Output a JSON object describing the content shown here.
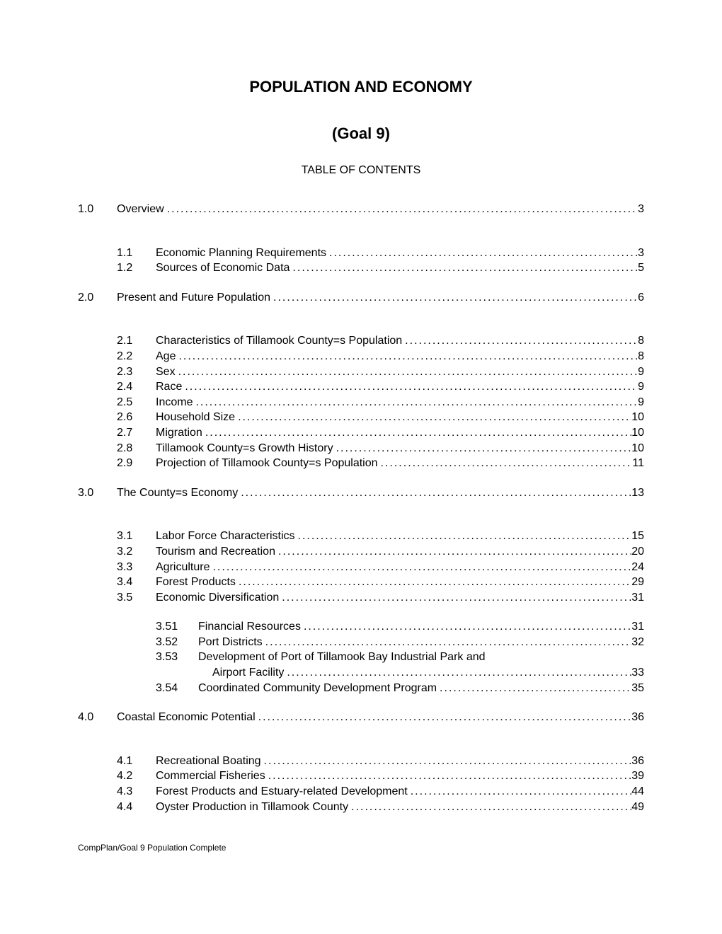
{
  "title_main": "POPULATION AND ECONOMY",
  "title_sub": "(Goal 9)",
  "toc_heading": "TABLE OF CONTENTS",
  "footer": "CompPlan/Goal 9 Population Complete",
  "leader_fill": "................................................................................................................................................................................",
  "toc": [
    {
      "level": 0,
      "num": "1.0",
      "label": "Overview",
      "page": "3",
      "section_head": true
    },
    {
      "level": 1,
      "num": "1.1",
      "label": "Economic Planning Requirements",
      "page": "3",
      "group_start": true
    },
    {
      "level": 1,
      "num": "1.2",
      "label": "Sources of Economic Data",
      "page": "5"
    },
    {
      "level": 0,
      "num": "2.0",
      "label": "Present and Future Population",
      "page": "6",
      "section_head": true
    },
    {
      "level": 1,
      "num": "2.1",
      "label": "Characteristics of Tillamook County=s Population",
      "page": "8",
      "group_start": true
    },
    {
      "level": 1,
      "num": "2.2",
      "label": "Age",
      "page": "8"
    },
    {
      "level": 1,
      "num": "2.3",
      "label": "Sex",
      "page": "9"
    },
    {
      "level": 1,
      "num": "2.4",
      "label": "Race",
      "page": "9"
    },
    {
      "level": 1,
      "num": "2.5",
      "label": "Income",
      "page": "9"
    },
    {
      "level": 1,
      "num": "2.6",
      "label": "Household Size",
      "page": "10"
    },
    {
      "level": 1,
      "num": "2.7",
      "label": "Migration",
      "page": "10"
    },
    {
      "level": 1,
      "num": "2.8",
      "label": "Tillamook County=s Growth History",
      "page": "10"
    },
    {
      "level": 1,
      "num": "2.9",
      "label": "Projection of Tillamook County=s Population",
      "page": "11"
    },
    {
      "level": 0,
      "num": "3.0",
      "label": "The County=s Economy",
      "page": "13",
      "section_head": true
    },
    {
      "level": 1,
      "num": "3.1",
      "label": "Labor Force Characteristics",
      "page": "15",
      "group_start": true
    },
    {
      "level": 1,
      "num": "3.2",
      "label": "Tourism and Recreation",
      "page": "20"
    },
    {
      "level": 1,
      "num": "3.3",
      "label": "Agriculture",
      "page": "24"
    },
    {
      "level": 1,
      "num": "3.4",
      "label": "Forest Products",
      "page": "29"
    },
    {
      "level": 1,
      "num": "3.5",
      "label": "Economic Diversification",
      "page": "31"
    },
    {
      "level": 2,
      "num": "3.51",
      "label": "Financial Resources",
      "page": "31",
      "group_start": true
    },
    {
      "level": 2,
      "num": "3.52",
      "label": "Port Districts",
      "page": "32"
    },
    {
      "level": 2,
      "num": "3.53",
      "label": "Development of Port of Tillamook Bay Industrial Park and",
      "no_leader": true
    },
    {
      "level": 2,
      "num": "",
      "label": "Airport Facility",
      "page": "33",
      "cont": true
    },
    {
      "level": 2,
      "num": "3.54",
      "label": "Coordinated Community Development Program",
      "page": "35"
    },
    {
      "level": 0,
      "num": "4.0",
      "label": "Coastal Economic Potential",
      "page": "36",
      "section_head": true
    },
    {
      "level": 1,
      "num": "4.1",
      "label": "Recreational Boating",
      "page": "36",
      "group_start": true
    },
    {
      "level": 1,
      "num": "4.2",
      "label": "Commercial Fisheries",
      "page": "39"
    },
    {
      "level": 1,
      "num": "4.3",
      "label": "Forest Products and Estuary-related Development",
      "page": "44"
    },
    {
      "level": 1,
      "num": "4.4",
      "label": "Oyster Production in Tillamook County",
      "page": "49"
    }
  ]
}
